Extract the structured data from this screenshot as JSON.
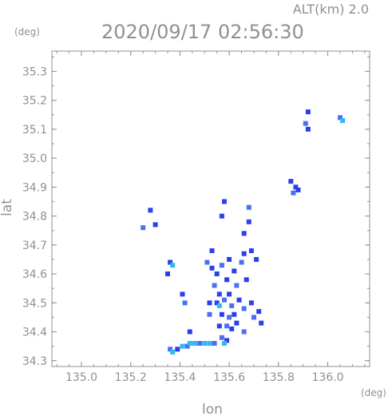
{
  "chart_data": {
    "type": "scatter",
    "title": "2020/09/17 02:56:30",
    "subtitle": "ALT(km) 2.0",
    "xlabel": "lon",
    "ylabel": "lat",
    "xunit": "(deg)",
    "yunit": "(deg)",
    "xlim": [
      134.88,
      136.17
    ],
    "ylim": [
      34.28,
      35.37
    ],
    "xticks": [
      "135.0",
      "135.2",
      "135.4",
      "135.6",
      "135.8",
      "136.0"
    ],
    "xtick_values": [
      135.0,
      135.2,
      135.4,
      135.6,
      135.8,
      136.0
    ],
    "yticks": [
      "34.3",
      "34.4",
      "34.5",
      "34.6",
      "34.7",
      "34.8",
      "34.9",
      "35.0",
      "35.1",
      "35.2",
      "35.3"
    ],
    "ytick_values": [
      34.3,
      34.4,
      34.5,
      34.6,
      34.7,
      34.8,
      34.9,
      35.0,
      35.1,
      35.2,
      35.3
    ],
    "grid": false,
    "colors": {
      "axis": "#909090",
      "echo_dark": "#2a40e8",
      "echo_mid": "#4a70f0",
      "echo_light": "#30b8f0"
    },
    "echo_cells": [
      {
        "x": 135.92,
        "y": 35.16,
        "c": "echo_dark"
      },
      {
        "x": 135.91,
        "y": 35.12,
        "c": "echo_mid"
      },
      {
        "x": 135.92,
        "y": 35.1,
        "c": "echo_dark"
      },
      {
        "x": 136.05,
        "y": 35.14,
        "c": "echo_mid"
      },
      {
        "x": 136.06,
        "y": 35.13,
        "c": "echo_light"
      },
      {
        "x": 135.87,
        "y": 34.9,
        "c": "echo_dark"
      },
      {
        "x": 135.86,
        "y": 34.88,
        "c": "echo_mid"
      },
      {
        "x": 135.88,
        "y": 34.89,
        "c": "echo_dark"
      },
      {
        "x": 135.85,
        "y": 34.92,
        "c": "echo_dark"
      },
      {
        "x": 135.28,
        "y": 34.82,
        "c": "echo_dark"
      },
      {
        "x": 135.3,
        "y": 34.77,
        "c": "echo_dark"
      },
      {
        "x": 135.25,
        "y": 34.76,
        "c": "echo_mid"
      },
      {
        "x": 135.58,
        "y": 34.85,
        "c": "echo_dark"
      },
      {
        "x": 135.68,
        "y": 34.83,
        "c": "echo_mid"
      },
      {
        "x": 135.66,
        "y": 34.74,
        "c": "echo_dark"
      },
      {
        "x": 135.68,
        "y": 34.78,
        "c": "echo_dark"
      },
      {
        "x": 135.57,
        "y": 34.8,
        "c": "echo_dark"
      },
      {
        "x": 135.36,
        "y": 34.64,
        "c": "echo_dark"
      },
      {
        "x": 135.37,
        "y": 34.63,
        "c": "echo_light"
      },
      {
        "x": 135.35,
        "y": 34.6,
        "c": "echo_dark"
      },
      {
        "x": 135.53,
        "y": 34.68,
        "c": "echo_dark"
      },
      {
        "x": 135.51,
        "y": 34.64,
        "c": "echo_mid"
      },
      {
        "x": 135.53,
        "y": 34.62,
        "c": "echo_dark"
      },
      {
        "x": 135.55,
        "y": 34.6,
        "c": "echo_dark"
      },
      {
        "x": 135.57,
        "y": 34.63,
        "c": "echo_mid"
      },
      {
        "x": 135.6,
        "y": 34.65,
        "c": "echo_dark"
      },
      {
        "x": 135.62,
        "y": 34.61,
        "c": "echo_dark"
      },
      {
        "x": 135.65,
        "y": 34.64,
        "c": "echo_mid"
      },
      {
        "x": 135.66,
        "y": 34.67,
        "c": "echo_dark"
      },
      {
        "x": 135.69,
        "y": 34.68,
        "c": "echo_dark"
      },
      {
        "x": 135.71,
        "y": 34.65,
        "c": "echo_dark"
      },
      {
        "x": 135.59,
        "y": 34.58,
        "c": "echo_dark"
      },
      {
        "x": 135.63,
        "y": 34.56,
        "c": "echo_mid"
      },
      {
        "x": 135.67,
        "y": 34.58,
        "c": "echo_dark"
      },
      {
        "x": 135.54,
        "y": 34.56,
        "c": "echo_mid"
      },
      {
        "x": 135.56,
        "y": 34.53,
        "c": "echo_dark"
      },
      {
        "x": 135.55,
        "y": 34.5,
        "c": "echo_dark"
      },
      {
        "x": 135.56,
        "y": 34.49,
        "c": "echo_light"
      },
      {
        "x": 135.58,
        "y": 34.51,
        "c": "echo_mid"
      },
      {
        "x": 135.6,
        "y": 34.53,
        "c": "echo_dark"
      },
      {
        "x": 135.61,
        "y": 34.49,
        "c": "echo_mid"
      },
      {
        "x": 135.64,
        "y": 34.51,
        "c": "echo_dark"
      },
      {
        "x": 135.66,
        "y": 34.48,
        "c": "echo_mid"
      },
      {
        "x": 135.69,
        "y": 34.5,
        "c": "echo_dark"
      },
      {
        "x": 135.72,
        "y": 34.47,
        "c": "echo_dark"
      },
      {
        "x": 135.7,
        "y": 34.45,
        "c": "echo_mid"
      },
      {
        "x": 135.73,
        "y": 34.43,
        "c": "echo_dark"
      },
      {
        "x": 135.57,
        "y": 34.46,
        "c": "echo_dark"
      },
      {
        "x": 135.6,
        "y": 34.45,
        "c": "echo_mid"
      },
      {
        "x": 135.62,
        "y": 34.46,
        "c": "echo_dark"
      },
      {
        "x": 135.52,
        "y": 34.5,
        "c": "echo_dark"
      },
      {
        "x": 135.52,
        "y": 34.46,
        "c": "echo_mid"
      },
      {
        "x": 135.61,
        "y": 34.41,
        "c": "echo_dark"
      },
      {
        "x": 135.56,
        "y": 34.42,
        "c": "echo_dark"
      },
      {
        "x": 135.59,
        "y": 34.42,
        "c": "echo_mid"
      },
      {
        "x": 135.63,
        "y": 34.43,
        "c": "echo_dark"
      },
      {
        "x": 135.66,
        "y": 34.4,
        "c": "echo_mid"
      },
      {
        "x": 135.41,
        "y": 34.53,
        "c": "echo_dark"
      },
      {
        "x": 135.42,
        "y": 34.5,
        "c": "echo_mid"
      },
      {
        "x": 135.44,
        "y": 34.4,
        "c": "echo_dark"
      },
      {
        "x": 135.57,
        "y": 34.38,
        "c": "echo_mid"
      },
      {
        "x": 135.59,
        "y": 34.37,
        "c": "echo_dark"
      },
      {
        "x": 135.58,
        "y": 34.36,
        "c": "echo_light"
      },
      {
        "x": 135.36,
        "y": 34.34,
        "c": "echo_mid"
      },
      {
        "x": 135.37,
        "y": 34.33,
        "c": "echo_light"
      },
      {
        "x": 135.39,
        "y": 34.34,
        "c": "echo_dark"
      },
      {
        "x": 135.41,
        "y": 34.35,
        "c": "echo_light"
      },
      {
        "x": 135.43,
        "y": 34.35,
        "c": "echo_mid"
      },
      {
        "x": 135.44,
        "y": 34.36,
        "c": "echo_light"
      },
      {
        "x": 135.46,
        "y": 34.36,
        "c": "echo_light"
      },
      {
        "x": 135.48,
        "y": 34.36,
        "c": "echo_mid"
      },
      {
        "x": 135.5,
        "y": 34.36,
        "c": "echo_light"
      },
      {
        "x": 135.52,
        "y": 34.36,
        "c": "echo_light"
      },
      {
        "x": 135.54,
        "y": 34.36,
        "c": "echo_mid"
      }
    ]
  }
}
